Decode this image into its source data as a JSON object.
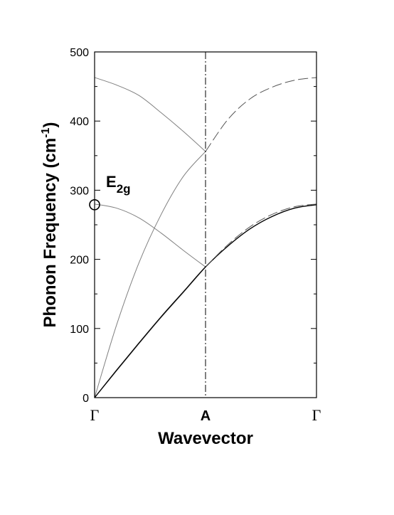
{
  "chart_data": {
    "type": "line",
    "title": "",
    "xlabel": "Wavevector",
    "ylabel_main": "Phonon Frequency (cm",
    "ylabel_sup": "-1",
    "ylabel_close": ")",
    "ylim": [
      0,
      500
    ],
    "yticks": [
      "0",
      "100",
      "200",
      "300",
      "400",
      "500"
    ],
    "xticks": [
      {
        "label": "Γ",
        "pos": 0
      },
      {
        "label": "A",
        "pos": 0.5
      },
      {
        "label": "Γ",
        "pos": 1
      }
    ],
    "grid": false,
    "annotation": {
      "main": "E",
      "sub": "2g",
      "x": 0,
      "y": 279
    },
    "series": [
      {
        "style": "thin-solid",
        "x": [
          0,
          0.1,
          0.2,
          0.3,
          0.4,
          0.5
        ],
        "y": [
          463,
          452,
          437,
          412,
          385,
          356
        ]
      },
      {
        "style": "thin-solid",
        "x": [
          0,
          0.1,
          0.2,
          0.3,
          0.4,
          0.5
        ],
        "y": [
          280,
          274,
          260,
          238,
          213,
          189
        ]
      },
      {
        "style": "thin-solid",
        "x": [
          0,
          0.1,
          0.2,
          0.3,
          0.4,
          0.5
        ],
        "y": [
          0,
          106,
          195,
          265,
          320,
          356
        ]
      },
      {
        "style": "thin-solid",
        "x": [
          0,
          0.1,
          0.2,
          0.3,
          0.4,
          0.5
        ],
        "y": [
          0,
          39,
          78,
          116,
          152,
          189
        ]
      },
      {
        "style": "thick-solid",
        "x": [
          0,
          0.1,
          0.2,
          0.3,
          0.4,
          0.5,
          0.6,
          0.7,
          0.8,
          0.9,
          1.0
        ],
        "y": [
          0,
          40,
          79,
          117,
          153,
          189,
          219,
          244,
          262,
          274,
          279
        ]
      },
      {
        "style": "dashed",
        "x": [
          0.5,
          0.6,
          0.7,
          0.8,
          0.9,
          1.0
        ],
        "y": [
          356,
          402,
          432,
          449,
          459,
          463
        ]
      },
      {
        "style": "dashed",
        "x": [
          0.5,
          0.6,
          0.7,
          0.8,
          0.9,
          1.0
        ],
        "y": [
          189,
          221,
          247,
          265,
          276,
          280
        ]
      }
    ]
  }
}
